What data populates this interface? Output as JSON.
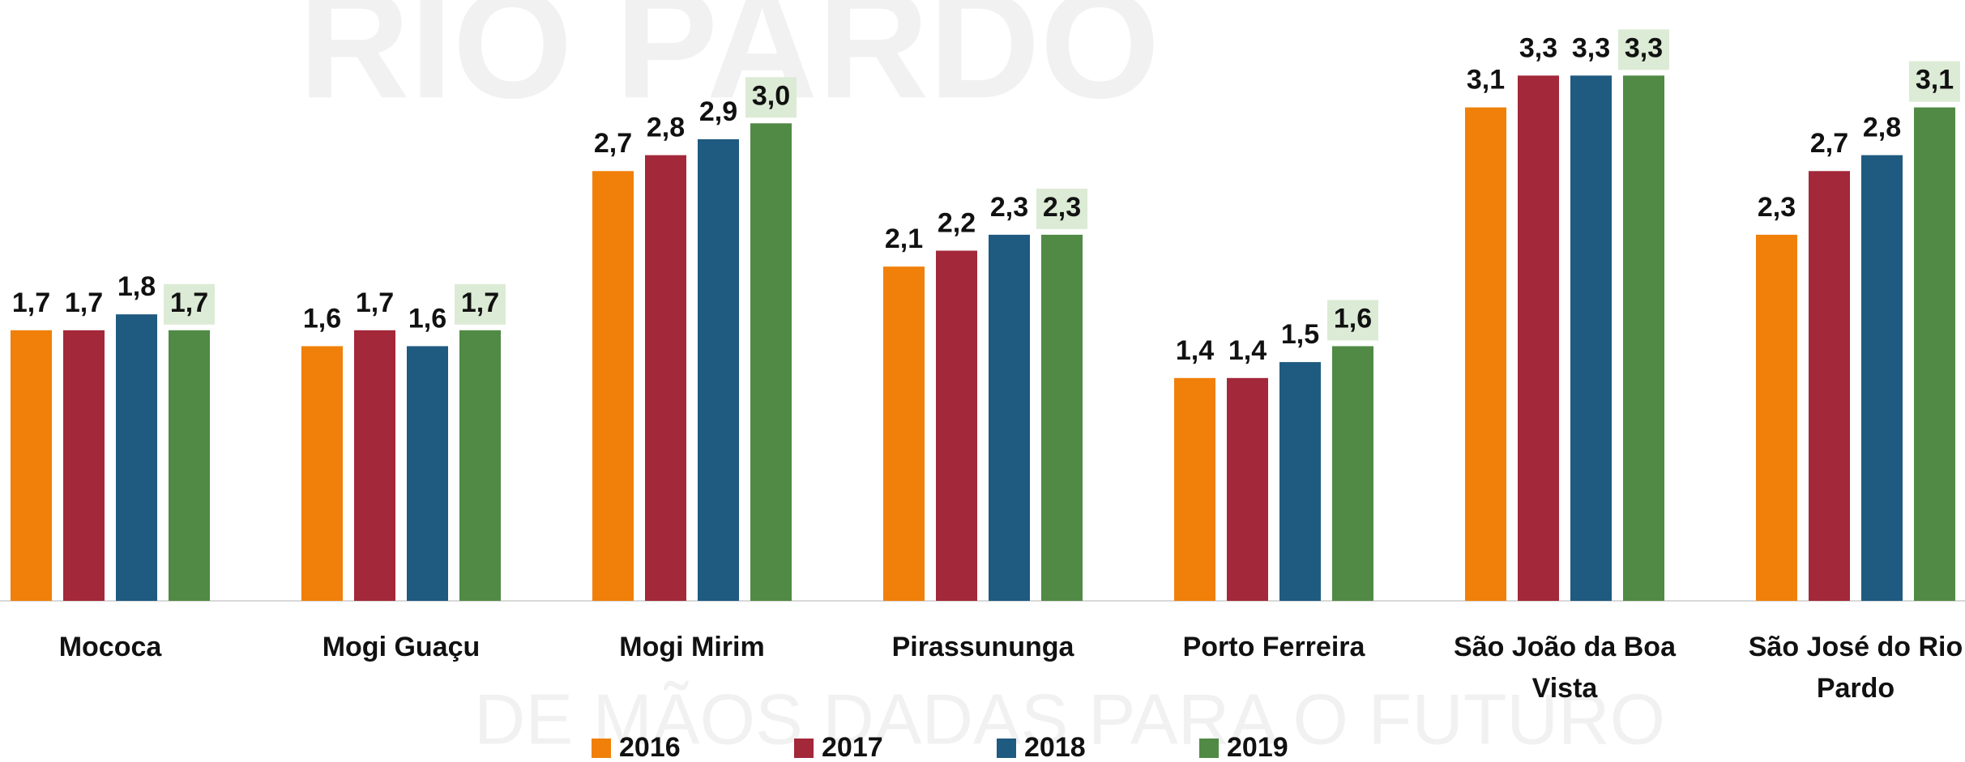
{
  "chart_data": {
    "type": "bar",
    "watermark": [
      "RIO PARDO",
      "DE MÃOS DADAS PARA O FUTURO"
    ],
    "categories": [
      "Mococa",
      "Mogi Guaçu",
      "Mogi Mirim",
      "Pirassununga",
      "Porto Ferreira",
      "São João da Boa Vista",
      "São José do Rio Pardo"
    ],
    "series": [
      {
        "name": "2016",
        "color": "#f0800a",
        "values": [
          1.7,
          1.6,
          2.7,
          2.1,
          1.4,
          3.1,
          2.3
        ],
        "value_labels": [
          "1,7",
          "1,6",
          "2,7",
          "2,1",
          "1,4",
          "3,1",
          "2,3"
        ]
      },
      {
        "name": "2017",
        "color": "#a3283a",
        "values": [
          1.7,
          1.7,
          2.8,
          2.2,
          1.4,
          3.3,
          2.7
        ],
        "value_labels": [
          "1,7",
          "1,7",
          "2,8",
          "2,2",
          "1,4",
          "3,3",
          "2,7"
        ]
      },
      {
        "name": "2018",
        "color": "#1f5a80",
        "values": [
          1.8,
          1.6,
          2.9,
          2.3,
          1.5,
          3.3,
          2.8
        ],
        "value_labels": [
          "1,8",
          "1,6",
          "2,9",
          "2,3",
          "1,5",
          "3,3",
          "2,8"
        ]
      },
      {
        "name": "2019",
        "color": "#508a45",
        "values": [
          1.7,
          1.7,
          3.0,
          2.3,
          1.6,
          3.3,
          3.1
        ],
        "value_labels": [
          "1,7",
          "1,7",
          "3,0",
          "2,3",
          "1,6",
          "3,3",
          "3,1"
        ]
      }
    ],
    "ylim": [
      0,
      3.5
    ],
    "legend": "bottom"
  }
}
